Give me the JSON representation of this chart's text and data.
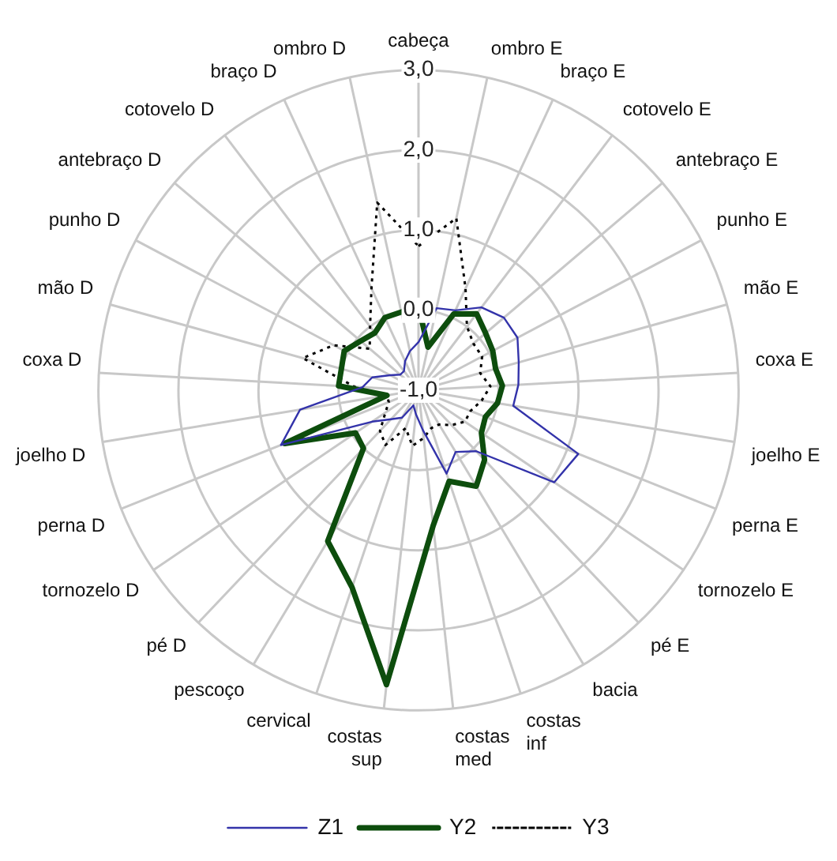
{
  "chart_data": {
    "type": "radar",
    "categories": [
      "cabeça",
      "ombro E",
      "braço E",
      "cotovelo E",
      "antebraço E",
      "punho E",
      "mão E",
      "coxa E",
      "joelho E",
      "perna E",
      "tornozelo E",
      "pé E",
      "bacia",
      "costas inf",
      "costas med",
      "costas sup",
      "cervical",
      "pescoço",
      "pé D",
      "tornozelo D",
      "perna D",
      "joelho D",
      "coxa D",
      "mão D",
      "punho D",
      "antebraço D",
      "cotovelo D",
      "braço D",
      "ombro D"
    ],
    "series": [
      {
        "name": "Z1",
        "color": "#3333aa",
        "line_style": "solid",
        "values": [
          -0.4,
          0.05,
          0.1,
          0.3,
          0.4,
          0.4,
          0.3,
          0.25,
          0.2,
          1.15,
          1.05,
          0.05,
          -0.1,
          0.1,
          -0.5,
          -0.7,
          -0.8,
          -0.6,
          -0.5,
          -0.3,
          0.85,
          0.5,
          -0.3,
          -0.4,
          -0.6,
          -0.7,
          -0.7,
          -0.6,
          -0.5
        ]
      },
      {
        "name": "Y2",
        "color": "#0d4d0d",
        "line_style": "solid",
        "values": [
          0.05,
          -0.45,
          0.05,
          0.2,
          0.1,
          0.05,
          0.0,
          0.05,
          0.0,
          -0.1,
          -0.05,
          0.2,
          0.4,
          0.2,
          0.7,
          2.7,
          1.6,
          1.2,
          0.0,
          -0.05,
          0.8,
          -0.6,
          0.0,
          0.0,
          0.05,
          -0.05,
          -0.1,
          0.0,
          0.0
        ]
      },
      {
        "name": "Y3",
        "color": "#000000",
        "line_style": "dotted",
        "values": [
          0.8,
          1.2,
          0.4,
          0.0,
          -0.1,
          -0.1,
          -0.2,
          -0.1,
          -0.2,
          -0.3,
          -0.3,
          -0.4,
          -0.5,
          -0.5,
          -0.4,
          -0.3,
          -0.5,
          -0.2,
          -0.3,
          -0.5,
          -0.6,
          -0.6,
          -0.2,
          0.5,
          0.2,
          -0.2,
          0.0,
          0.4,
          1.4
        ]
      }
    ],
    "ylim": [
      -1,
      3
    ],
    "yticks": [
      {
        "value": -1,
        "label": "-1,0"
      },
      {
        "value": 0,
        "label": "0,0"
      },
      {
        "value": 1,
        "label": "1,0"
      },
      {
        "value": 2,
        "label": "2,0"
      },
      {
        "value": 3,
        "label": "3,0"
      }
    ],
    "grid": true,
    "legend": "bottom",
    "marker": "none"
  }
}
